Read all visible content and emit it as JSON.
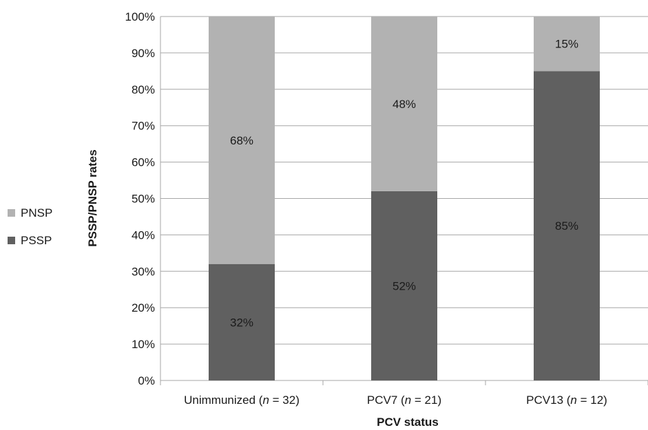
{
  "chart_data": {
    "type": "bar",
    "stacked": true,
    "categories": [
      {
        "name": "Unimmunized",
        "n_label": "n",
        "n_sep": " = ",
        "n_value": "32"
      },
      {
        "name": "PCV7",
        "n_label": "n",
        "n_sep": " = ",
        "n_value": "21"
      },
      {
        "name": "PCV13",
        "n_label": "n",
        "n_sep": " = ",
        "n_value": "12"
      }
    ],
    "series": [
      {
        "name": "PSSP",
        "color": "#606060",
        "values": [
          32,
          52,
          85
        ],
        "labels": [
          "32%",
          "52%",
          "85%"
        ]
      },
      {
        "name": "PNSP",
        "color": "#b2b2b2",
        "values": [
          68,
          48,
          15
        ],
        "labels": [
          "68%",
          "48%",
          "15%"
        ]
      }
    ],
    "xlabel": "PCV status",
    "ylabel": "PSSP/PNSP rates",
    "ylim": [
      0,
      100
    ],
    "yticks": [
      "0%",
      "10%",
      "20%",
      "30%",
      "40%",
      "50%",
      "60%",
      "70%",
      "80%",
      "90%",
      "100%"
    ],
    "grid": true,
    "legend_position": "left",
    "legend_order": [
      "PNSP",
      "PSSP"
    ]
  }
}
